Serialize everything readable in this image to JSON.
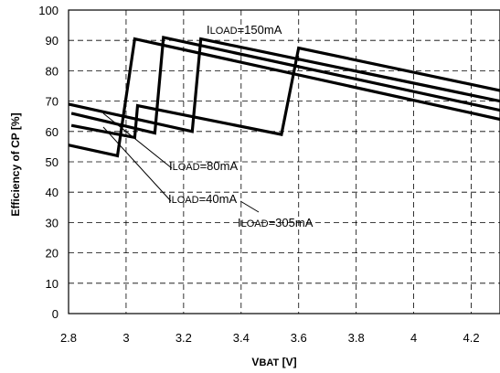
{
  "chart_data": {
    "type": "line",
    "xlabel": {
      "main": "V",
      "sub": "BAT",
      "unit": " [V]"
    },
    "ylabel": "Efficiency of CP [%]",
    "xlim": [
      2.8,
      4.3
    ],
    "ylim": [
      0,
      100
    ],
    "x_ticks": [
      2.8,
      3,
      3.2,
      3.4,
      3.6,
      3.8,
      4,
      4.2
    ],
    "x_tick_labels": [
      "2.8",
      "3",
      "3.2",
      "3.4",
      "3.6",
      "3.8",
      "4",
      "4.2"
    ],
    "y_ticks": [
      0,
      10,
      20,
      30,
      40,
      50,
      60,
      70,
      80,
      90,
      100
    ],
    "y_tick_labels": [
      "0",
      "10",
      "20",
      "30",
      "40",
      "50",
      "60",
      "70",
      "80",
      "90",
      "100"
    ],
    "grid": true,
    "series": [
      {
        "name": "ILOAD=40mA",
        "x": [
          2.8,
          2.97,
          3.03,
          4.3
        ],
        "y": [
          55.5,
          52,
          90.5,
          64
        ]
      },
      {
        "name": "ILOAD=80mA",
        "x": [
          2.81,
          3.1,
          3.13,
          4.3
        ],
        "y": [
          66,
          59.5,
          91,
          67
        ]
      },
      {
        "name": "ILOAD=150mA",
        "x": [
          2.8,
          3.23,
          3.26,
          4.3
        ],
        "y": [
          69,
          60,
          90.5,
          70
        ]
      },
      {
        "name": "ILOAD=305mA",
        "x": [
          2.81,
          3.03,
          3.04,
          3.54,
          3.6,
          4.3
        ],
        "y": [
          62,
          58,
          68.5,
          59,
          87.5,
          73.5
        ]
      }
    ],
    "annotations": [
      {
        "pre": "I",
        "sub": "LOAD",
        "post": "=150mA"
      },
      {
        "pre": "I",
        "sub": "LOAD",
        "post": "=305mA"
      },
      {
        "pre": "I",
        "sub": "LOAD",
        "post": "=80mA"
      },
      {
        "pre": "I",
        "sub": "LOAD",
        "post": "=40mA"
      }
    ]
  }
}
